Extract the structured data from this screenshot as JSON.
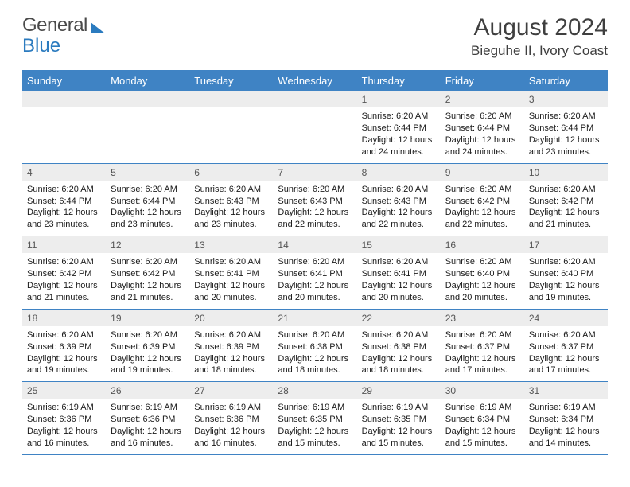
{
  "logo": {
    "text1": "General",
    "text2": "Blue"
  },
  "title": "August 2024",
  "location": "Bieguhe II, Ivory Coast",
  "header_bg": "#3f83c4",
  "header_fg": "#ffffff",
  "daynum_bg": "#ededed",
  "border_color": "#3f83c4",
  "text_color": "#1a1a1a",
  "weekdays": [
    "Sunday",
    "Monday",
    "Tuesday",
    "Wednesday",
    "Thursday",
    "Friday",
    "Saturday"
  ],
  "weeks": [
    [
      {
        "n": "",
        "sunrise": "",
        "sunset": "",
        "daylight": ""
      },
      {
        "n": "",
        "sunrise": "",
        "sunset": "",
        "daylight": ""
      },
      {
        "n": "",
        "sunrise": "",
        "sunset": "",
        "daylight": ""
      },
      {
        "n": "",
        "sunrise": "",
        "sunset": "",
        "daylight": ""
      },
      {
        "n": "1",
        "sunrise": "Sunrise: 6:20 AM",
        "sunset": "Sunset: 6:44 PM",
        "daylight": "Daylight: 12 hours and 24 minutes."
      },
      {
        "n": "2",
        "sunrise": "Sunrise: 6:20 AM",
        "sunset": "Sunset: 6:44 PM",
        "daylight": "Daylight: 12 hours and 24 minutes."
      },
      {
        "n": "3",
        "sunrise": "Sunrise: 6:20 AM",
        "sunset": "Sunset: 6:44 PM",
        "daylight": "Daylight: 12 hours and 23 minutes."
      }
    ],
    [
      {
        "n": "4",
        "sunrise": "Sunrise: 6:20 AM",
        "sunset": "Sunset: 6:44 PM",
        "daylight": "Daylight: 12 hours and 23 minutes."
      },
      {
        "n": "5",
        "sunrise": "Sunrise: 6:20 AM",
        "sunset": "Sunset: 6:44 PM",
        "daylight": "Daylight: 12 hours and 23 minutes."
      },
      {
        "n": "6",
        "sunrise": "Sunrise: 6:20 AM",
        "sunset": "Sunset: 6:43 PM",
        "daylight": "Daylight: 12 hours and 23 minutes."
      },
      {
        "n": "7",
        "sunrise": "Sunrise: 6:20 AM",
        "sunset": "Sunset: 6:43 PM",
        "daylight": "Daylight: 12 hours and 22 minutes."
      },
      {
        "n": "8",
        "sunrise": "Sunrise: 6:20 AM",
        "sunset": "Sunset: 6:43 PM",
        "daylight": "Daylight: 12 hours and 22 minutes."
      },
      {
        "n": "9",
        "sunrise": "Sunrise: 6:20 AM",
        "sunset": "Sunset: 6:42 PM",
        "daylight": "Daylight: 12 hours and 22 minutes."
      },
      {
        "n": "10",
        "sunrise": "Sunrise: 6:20 AM",
        "sunset": "Sunset: 6:42 PM",
        "daylight": "Daylight: 12 hours and 21 minutes."
      }
    ],
    [
      {
        "n": "11",
        "sunrise": "Sunrise: 6:20 AM",
        "sunset": "Sunset: 6:42 PM",
        "daylight": "Daylight: 12 hours and 21 minutes."
      },
      {
        "n": "12",
        "sunrise": "Sunrise: 6:20 AM",
        "sunset": "Sunset: 6:42 PM",
        "daylight": "Daylight: 12 hours and 21 minutes."
      },
      {
        "n": "13",
        "sunrise": "Sunrise: 6:20 AM",
        "sunset": "Sunset: 6:41 PM",
        "daylight": "Daylight: 12 hours and 20 minutes."
      },
      {
        "n": "14",
        "sunrise": "Sunrise: 6:20 AM",
        "sunset": "Sunset: 6:41 PM",
        "daylight": "Daylight: 12 hours and 20 minutes."
      },
      {
        "n": "15",
        "sunrise": "Sunrise: 6:20 AM",
        "sunset": "Sunset: 6:41 PM",
        "daylight": "Daylight: 12 hours and 20 minutes."
      },
      {
        "n": "16",
        "sunrise": "Sunrise: 6:20 AM",
        "sunset": "Sunset: 6:40 PM",
        "daylight": "Daylight: 12 hours and 20 minutes."
      },
      {
        "n": "17",
        "sunrise": "Sunrise: 6:20 AM",
        "sunset": "Sunset: 6:40 PM",
        "daylight": "Daylight: 12 hours and 19 minutes."
      }
    ],
    [
      {
        "n": "18",
        "sunrise": "Sunrise: 6:20 AM",
        "sunset": "Sunset: 6:39 PM",
        "daylight": "Daylight: 12 hours and 19 minutes."
      },
      {
        "n": "19",
        "sunrise": "Sunrise: 6:20 AM",
        "sunset": "Sunset: 6:39 PM",
        "daylight": "Daylight: 12 hours and 19 minutes."
      },
      {
        "n": "20",
        "sunrise": "Sunrise: 6:20 AM",
        "sunset": "Sunset: 6:39 PM",
        "daylight": "Daylight: 12 hours and 18 minutes."
      },
      {
        "n": "21",
        "sunrise": "Sunrise: 6:20 AM",
        "sunset": "Sunset: 6:38 PM",
        "daylight": "Daylight: 12 hours and 18 minutes."
      },
      {
        "n": "22",
        "sunrise": "Sunrise: 6:20 AM",
        "sunset": "Sunset: 6:38 PM",
        "daylight": "Daylight: 12 hours and 18 minutes."
      },
      {
        "n": "23",
        "sunrise": "Sunrise: 6:20 AM",
        "sunset": "Sunset: 6:37 PM",
        "daylight": "Daylight: 12 hours and 17 minutes."
      },
      {
        "n": "24",
        "sunrise": "Sunrise: 6:20 AM",
        "sunset": "Sunset: 6:37 PM",
        "daylight": "Daylight: 12 hours and 17 minutes."
      }
    ],
    [
      {
        "n": "25",
        "sunrise": "Sunrise: 6:19 AM",
        "sunset": "Sunset: 6:36 PM",
        "daylight": "Daylight: 12 hours and 16 minutes."
      },
      {
        "n": "26",
        "sunrise": "Sunrise: 6:19 AM",
        "sunset": "Sunset: 6:36 PM",
        "daylight": "Daylight: 12 hours and 16 minutes."
      },
      {
        "n": "27",
        "sunrise": "Sunrise: 6:19 AM",
        "sunset": "Sunset: 6:36 PM",
        "daylight": "Daylight: 12 hours and 16 minutes."
      },
      {
        "n": "28",
        "sunrise": "Sunrise: 6:19 AM",
        "sunset": "Sunset: 6:35 PM",
        "daylight": "Daylight: 12 hours and 15 minutes."
      },
      {
        "n": "29",
        "sunrise": "Sunrise: 6:19 AM",
        "sunset": "Sunset: 6:35 PM",
        "daylight": "Daylight: 12 hours and 15 minutes."
      },
      {
        "n": "30",
        "sunrise": "Sunrise: 6:19 AM",
        "sunset": "Sunset: 6:34 PM",
        "daylight": "Daylight: 12 hours and 15 minutes."
      },
      {
        "n": "31",
        "sunrise": "Sunrise: 6:19 AM",
        "sunset": "Sunset: 6:34 PM",
        "daylight": "Daylight: 12 hours and 14 minutes."
      }
    ]
  ]
}
